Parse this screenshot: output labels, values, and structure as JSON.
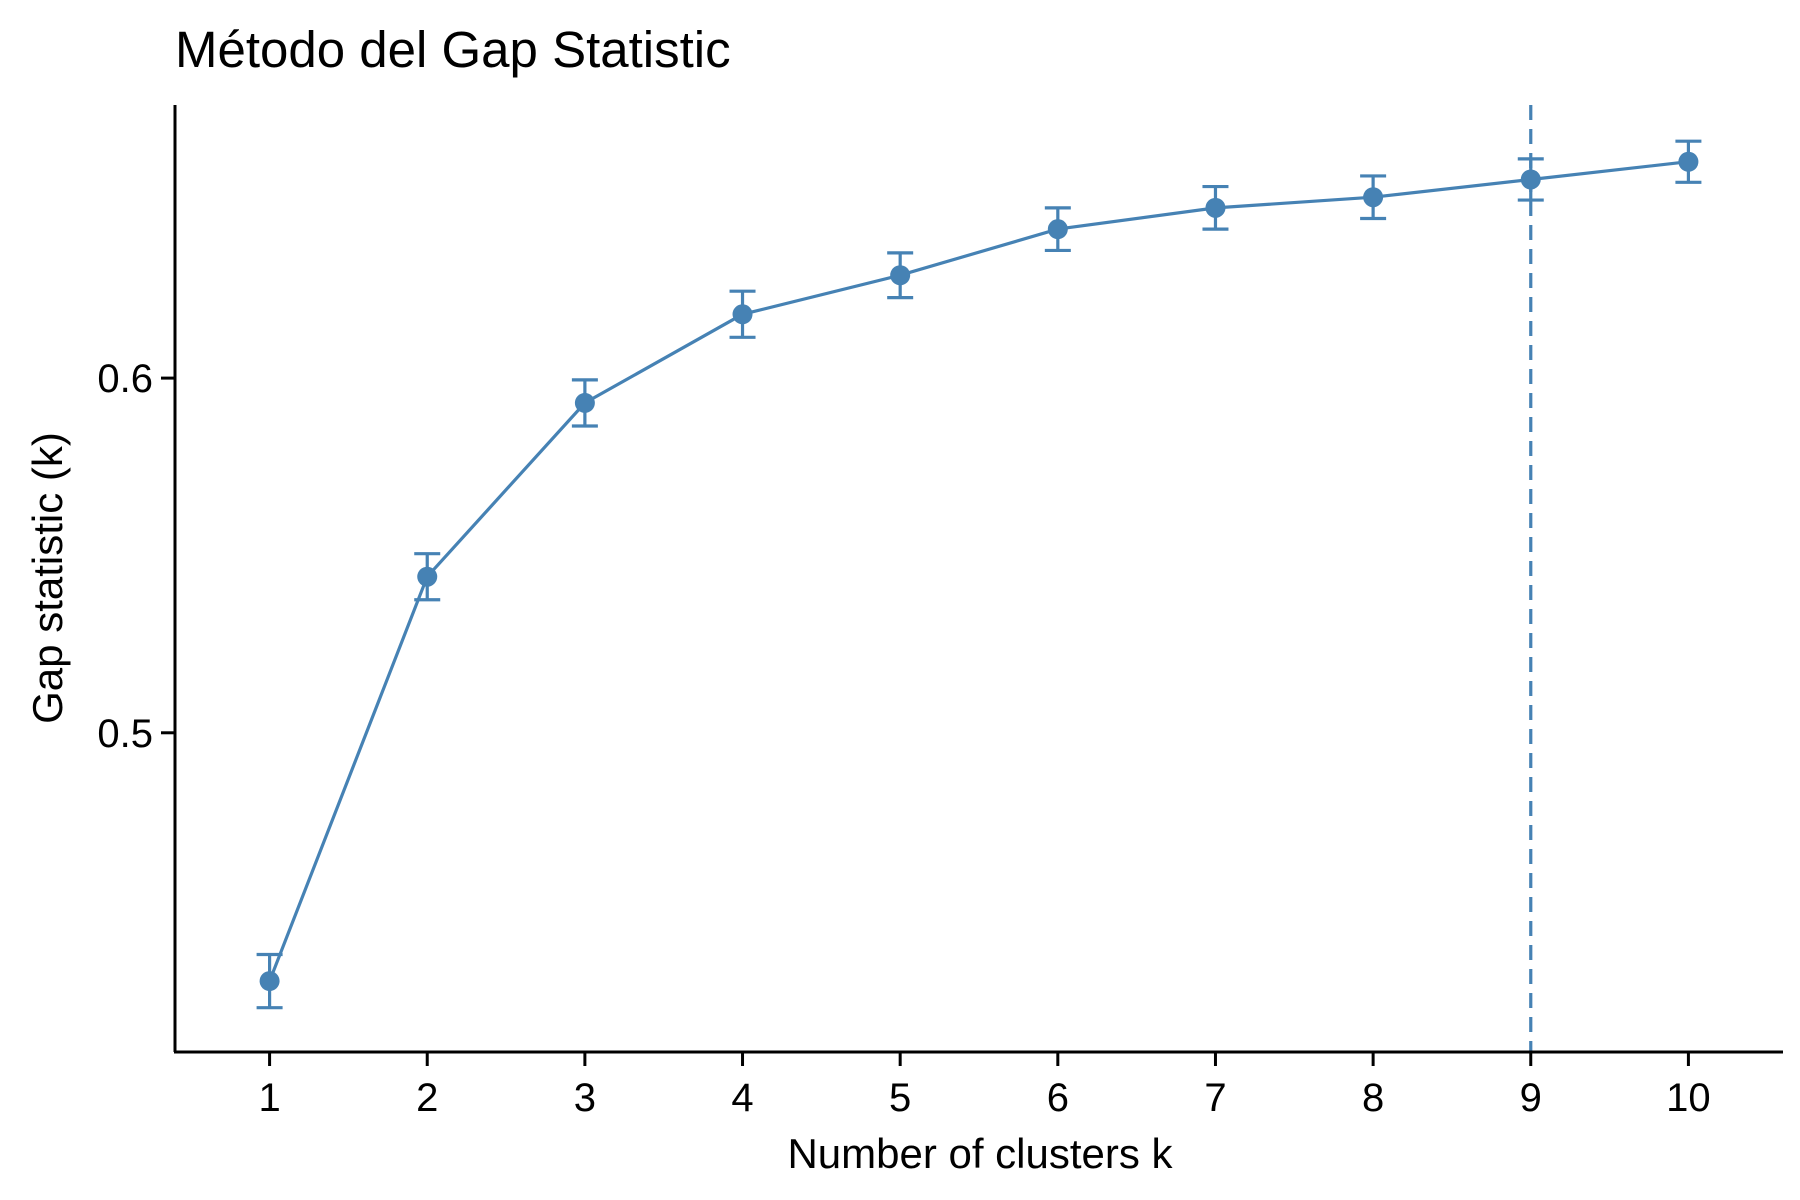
{
  "chart_data": {
    "type": "line",
    "title": "Método del Gap Statistic",
    "xlabel": "Number of clusters k",
    "ylabel": "Gap statistic (k)",
    "x": [
      1,
      2,
      3,
      4,
      5,
      6,
      7,
      8,
      9,
      10
    ],
    "xticks": [
      "1",
      "2",
      "3",
      "4",
      "5",
      "6",
      "7",
      "8",
      "9",
      "10"
    ],
    "yticks": [
      "0.5",
      "0.6"
    ],
    "ytick_values": [
      0.5,
      0.6
    ],
    "xlim": [
      0.4,
      10.6
    ],
    "ylim": [
      0.41,
      0.677
    ],
    "series": [
      {
        "values": [
          0.43,
          0.544,
          0.593,
          0.618,
          0.629,
          0.642,
          0.648,
          0.651,
          0.656,
          0.661
        ],
        "error": [
          0.0075,
          0.0065,
          0.0065,
          0.0065,
          0.0063,
          0.006,
          0.006,
          0.006,
          0.0058,
          0.0058
        ],
        "color": "#4682B4"
      }
    ],
    "optimal_k": 9,
    "grid": false,
    "legend": "none"
  }
}
